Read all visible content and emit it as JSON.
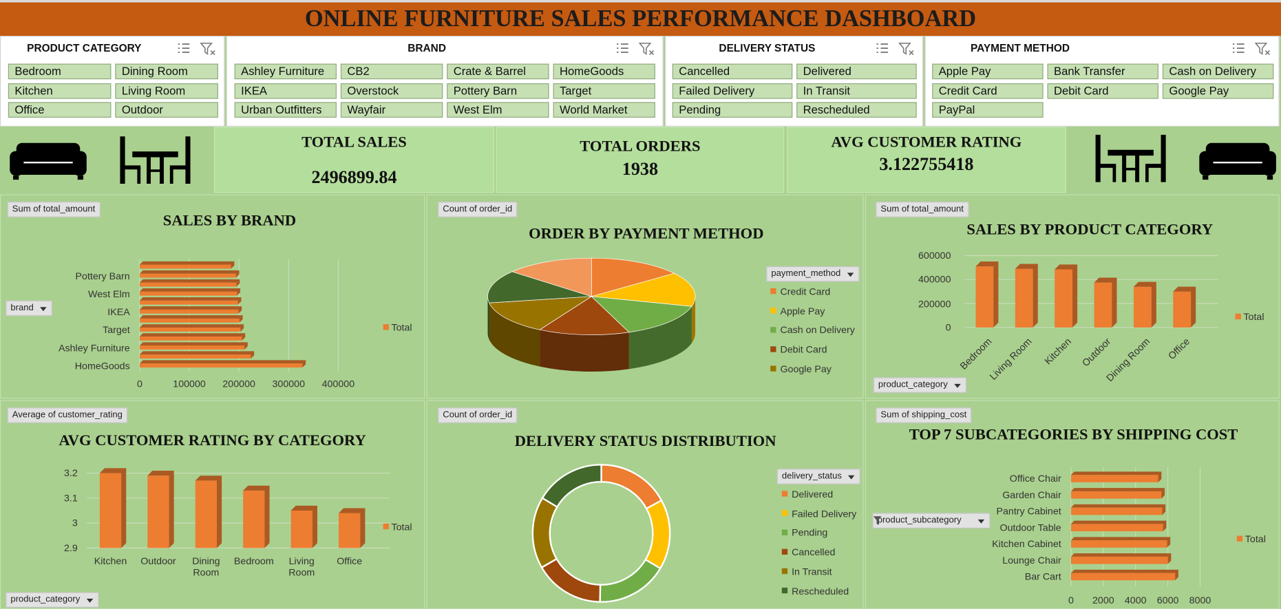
{
  "title": "ONLINE FURNITURE SALES PERFORMANCE DASHBOARD",
  "slicers": [
    {
      "title": "PRODUCT CATEGORY",
      "items": [
        "Bedroom",
        "Dining Room",
        "Kitchen",
        "Living Room",
        "Office",
        "Outdoor"
      ]
    },
    {
      "title": "BRAND",
      "items": [
        "Ashley Furniture",
        "CB2",
        "Crate & Barrel",
        "HomeGoods",
        "IKEA",
        "Overstock",
        "Pottery Barn",
        "Target",
        "Urban Outfitters",
        "Wayfair",
        "West Elm",
        "World Market"
      ]
    },
    {
      "title": "DELIVERY STATUS",
      "items": [
        "Cancelled",
        "Delivered",
        "Failed Delivery",
        "In Transit",
        "Pending",
        "Rescheduled"
      ]
    },
    {
      "title": "PAYMENT METHOD",
      "items": [
        "Apple Pay",
        "Bank Transfer",
        "Cash on Delivery",
        "Credit Card",
        "Debit Card",
        "Google Pay",
        "PayPal"
      ]
    }
  ],
  "kpis": [
    {
      "label": "TOTAL SALES",
      "value": 2496899.84
    },
    {
      "label": "TOTAL ORDERS",
      "value": 1938
    },
    {
      "label": "AVG CUSTOMER RATING",
      "value": 3.122755418
    }
  ],
  "chart_data": [
    {
      "type": "bar",
      "title": "SALES BY BRAND",
      "value_field": "Sum of total_amount",
      "axis_field": "brand",
      "categories": [
        "HomeGoods",
        null,
        "Ashley Furniture",
        null,
        "Target",
        null,
        "IKEA",
        null,
        "West Elm",
        null,
        "Pottery Barn",
        null
      ],
      "series": [
        {
          "name": "Total",
          "color": "#ed7d31",
          "values": [
            328000,
            224000,
            211000,
            206000,
            203000,
            201000,
            199000,
            198000,
            196000,
            195000,
            194000,
            184000
          ]
        }
      ],
      "xlim": [
        0,
        400000
      ],
      "xticks": [
        0,
        100000,
        200000,
        300000,
        400000
      ],
      "grid": true
    },
    {
      "type": "pie",
      "title": "ORDER BY PAYMENT METHOD",
      "value_field": "Count of order_id",
      "legend_field": "payment_method",
      "categories": [
        "Credit Card",
        "Apple Pay",
        "Cash on Delivery",
        "Debit Card",
        "Google Pay",
        null,
        null
      ],
      "values": [
        285,
        280,
        290,
        275,
        272,
        268,
        268
      ],
      "colors": [
        "#ed7d31",
        "#ffc000",
        "#70ad47",
        "#9e480e",
        "#997300",
        "#43682b",
        "#f1975a"
      ]
    },
    {
      "type": "column",
      "title": "SALES BY PRODUCT CATEGORY",
      "value_field": "Sum of total_amount",
      "axis_field": "product_category",
      "categories": [
        "Bedroom",
        "Living Room",
        "Kitchen",
        "Outdoor",
        "Dining Room",
        "Office"
      ],
      "series": [
        {
          "name": "Total",
          "color": "#ed7d31",
          "values": [
            510000,
            490000,
            485000,
            375000,
            340000,
            300000
          ]
        }
      ],
      "ylim": [
        0,
        600000
      ],
      "yticks": [
        0,
        200000,
        400000,
        600000
      ],
      "grid": true
    },
    {
      "type": "column",
      "title": "AVG CUSTOMER RATING BY CATEGORY",
      "value_field": "Average of customer_rating",
      "axis_field": "product_category",
      "categories": [
        "Kitchen",
        "Outdoor",
        "Dining Room",
        "Bedroom",
        "Living Room",
        "Office"
      ],
      "series": [
        {
          "name": "Total",
          "color": "#ed7d31",
          "values": [
            3.2,
            3.19,
            3.17,
            3.13,
            3.05,
            3.04
          ]
        }
      ],
      "ylim": [
        2.9,
        3.25
      ],
      "yticks": [
        2.9,
        3,
        3.1,
        3.2
      ],
      "grid": true
    },
    {
      "type": "doughnut",
      "title": "DELIVERY STATUS DISTRIBUTION",
      "value_field": "Count of order_id",
      "legend_field": "delivery_status",
      "categories": [
        "Delivered",
        "Failed Delivery",
        "Pending",
        "Cancelled",
        "In Transit",
        "Rescheduled"
      ],
      "values": [
        330,
        320,
        325,
        318,
        327,
        318
      ],
      "colors": [
        "#ed7d31",
        "#ffc000",
        "#70ad47",
        "#9e480e",
        "#997300",
        "#43682b"
      ]
    },
    {
      "type": "bar",
      "title": "TOP 7 SUBCATEGORIES BY SHIPPING COST",
      "value_field": "Sum of shipping_cost",
      "axis_field": "product_subcategory",
      "axis_filter": true,
      "categories": [
        "Bar Cart",
        "Lounge Chair",
        "Kitchen Cabinet",
        "Outdoor Table",
        "Pantry Cabinet",
        "Garden Chair",
        "Office Chair"
      ],
      "series": [
        {
          "name": "Total",
          "color": "#ed7d31",
          "values": [
            6450,
            6000,
            5950,
            5700,
            5650,
            5600,
            5400
          ]
        }
      ],
      "xlim": [
        0,
        8000
      ],
      "xticks": [
        0,
        2000,
        4000,
        6000,
        8000
      ],
      "grid": true
    }
  ]
}
